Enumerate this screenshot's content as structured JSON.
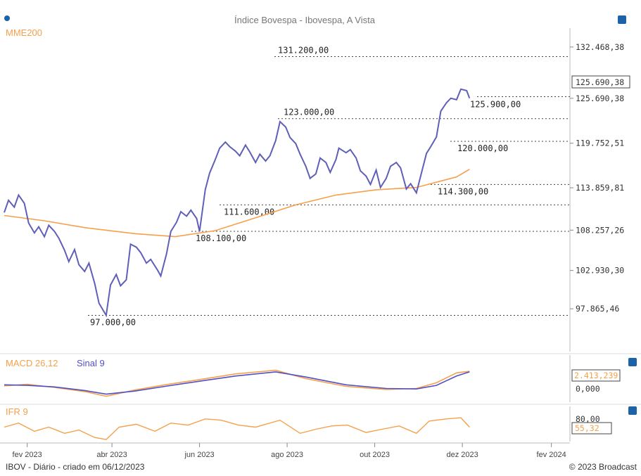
{
  "chart_data": {
    "type": "line",
    "title": "Índice Bovespa - Ibovespa, A Vista",
    "indicator_label": "MME200",
    "footer_left": "IBOV - Diário - criado em 06/12/2023",
    "footer_right": "© 2023 Broadcast",
    "y_ticks": [
      "132.468,38",
      "125.690,38",
      "119.752,51",
      "113.859,81",
      "108.257,26",
      "102.930,30",
      "97.865,46"
    ],
    "ylim": [
      95000,
      134500
    ],
    "x_ticks": [
      {
        "label": "fev 2023",
        "date": "2023-02-01"
      },
      {
        "label": "abr 2023",
        "date": "2023-04-01"
      },
      {
        "label": "jun 2023",
        "date": "2023-06-01"
      },
      {
        "label": "ago 2023",
        "date": "2023-08-01"
      },
      {
        "label": "out 2023",
        "date": "2023-10-01"
      },
      {
        "label": "dez 2023",
        "date": "2023-12-01"
      },
      {
        "label": "fev 2024",
        "date": "2024-02-01"
      }
    ],
    "xlim": [
      "2023-01-16",
      "2024-02-10"
    ],
    "price_series": [
      {
        "date": "2023-01-16",
        "value": 110600
      },
      {
        "date": "2023-01-19",
        "value": 112200
      },
      {
        "date": "2023-01-23",
        "value": 111300
      },
      {
        "date": "2023-01-26",
        "value": 112900
      },
      {
        "date": "2023-01-30",
        "value": 111800
      },
      {
        "date": "2023-02-02",
        "value": 109200
      },
      {
        "date": "2023-02-06",
        "value": 107900
      },
      {
        "date": "2023-02-09",
        "value": 108700
      },
      {
        "date": "2023-02-13",
        "value": 107400
      },
      {
        "date": "2023-02-16",
        "value": 108900
      },
      {
        "date": "2023-02-20",
        "value": 108100
      },
      {
        "date": "2023-02-23",
        "value": 107200
      },
      {
        "date": "2023-02-27",
        "value": 105600
      },
      {
        "date": "2023-03-02",
        "value": 104100
      },
      {
        "date": "2023-03-06",
        "value": 105700
      },
      {
        "date": "2023-03-09",
        "value": 103700
      },
      {
        "date": "2023-03-13",
        "value": 102800
      },
      {
        "date": "2023-03-16",
        "value": 103900
      },
      {
        "date": "2023-03-20",
        "value": 101200
      },
      {
        "date": "2023-03-23",
        "value": 98600
      },
      {
        "date": "2023-03-28",
        "value": 97000
      },
      {
        "date": "2023-03-31",
        "value": 101000
      },
      {
        "date": "2023-04-04",
        "value": 102400
      },
      {
        "date": "2023-04-07",
        "value": 100900
      },
      {
        "date": "2023-04-11",
        "value": 101700
      },
      {
        "date": "2023-04-14",
        "value": 106400
      },
      {
        "date": "2023-04-18",
        "value": 106000
      },
      {
        "date": "2023-04-21",
        "value": 105300
      },
      {
        "date": "2023-04-25",
        "value": 103900
      },
      {
        "date": "2023-04-28",
        "value": 104400
      },
      {
        "date": "2023-05-03",
        "value": 102900
      },
      {
        "date": "2023-05-05",
        "value": 102200
      },
      {
        "date": "2023-05-09",
        "value": 105100
      },
      {
        "date": "2023-05-12",
        "value": 108100
      },
      {
        "date": "2023-05-16",
        "value": 109300
      },
      {
        "date": "2023-05-19",
        "value": 110700
      },
      {
        "date": "2023-05-23",
        "value": 110100
      },
      {
        "date": "2023-05-26",
        "value": 110900
      },
      {
        "date": "2023-05-30",
        "value": 109800
      },
      {
        "date": "2023-06-01",
        "value": 108100
      },
      {
        "date": "2023-06-05",
        "value": 113600
      },
      {
        "date": "2023-06-08",
        "value": 115800
      },
      {
        "date": "2023-06-12",
        "value": 117600
      },
      {
        "date": "2023-06-15",
        "value": 119100
      },
      {
        "date": "2023-06-19",
        "value": 119900
      },
      {
        "date": "2023-06-22",
        "value": 119300
      },
      {
        "date": "2023-06-26",
        "value": 118700
      },
      {
        "date": "2023-06-29",
        "value": 118100
      },
      {
        "date": "2023-07-03",
        "value": 119500
      },
      {
        "date": "2023-07-06",
        "value": 118600
      },
      {
        "date": "2023-07-10",
        "value": 117200
      },
      {
        "date": "2023-07-13",
        "value": 118300
      },
      {
        "date": "2023-07-17",
        "value": 117400
      },
      {
        "date": "2023-07-20",
        "value": 118100
      },
      {
        "date": "2023-07-24",
        "value": 120100
      },
      {
        "date": "2023-07-27",
        "value": 122600
      },
      {
        "date": "2023-07-31",
        "value": 121900
      },
      {
        "date": "2023-08-03",
        "value": 120500
      },
      {
        "date": "2023-08-07",
        "value": 119700
      },
      {
        "date": "2023-08-10",
        "value": 118300
      },
      {
        "date": "2023-08-14",
        "value": 116700
      },
      {
        "date": "2023-08-17",
        "value": 115100
      },
      {
        "date": "2023-08-21",
        "value": 115700
      },
      {
        "date": "2023-08-24",
        "value": 117800
      },
      {
        "date": "2023-08-28",
        "value": 117200
      },
      {
        "date": "2023-08-31",
        "value": 115900
      },
      {
        "date": "2023-09-04",
        "value": 117600
      },
      {
        "date": "2023-09-06",
        "value": 119100
      },
      {
        "date": "2023-09-11",
        "value": 118500
      },
      {
        "date": "2023-09-14",
        "value": 118900
      },
      {
        "date": "2023-09-18",
        "value": 117800
      },
      {
        "date": "2023-09-21",
        "value": 116100
      },
      {
        "date": "2023-09-25",
        "value": 115400
      },
      {
        "date": "2023-09-28",
        "value": 114300
      },
      {
        "date": "2023-10-02",
        "value": 116200
      },
      {
        "date": "2023-10-05",
        "value": 113900
      },
      {
        "date": "2023-10-09",
        "value": 115100
      },
      {
        "date": "2023-10-12",
        "value": 116700
      },
      {
        "date": "2023-10-16",
        "value": 117200
      },
      {
        "date": "2023-10-19",
        "value": 116500
      },
      {
        "date": "2023-10-23",
        "value": 113700
      },
      {
        "date": "2023-10-26",
        "value": 114400
      },
      {
        "date": "2023-10-30",
        "value": 113200
      },
      {
        "date": "2023-11-01",
        "value": 114700
      },
      {
        "date": "2023-11-06",
        "value": 118400
      },
      {
        "date": "2023-11-09",
        "value": 119300
      },
      {
        "date": "2023-11-13",
        "value": 120600
      },
      {
        "date": "2023-11-16",
        "value": 124000
      },
      {
        "date": "2023-11-20",
        "value": 125100
      },
      {
        "date": "2023-11-23",
        "value": 125700
      },
      {
        "date": "2023-11-27",
        "value": 125500
      },
      {
        "date": "2023-11-30",
        "value": 126900
      },
      {
        "date": "2023-12-04",
        "value": 126700
      },
      {
        "date": "2023-12-06",
        "value": 125700
      }
    ],
    "mme200_series": [
      {
        "date": "2023-01-16",
        "value": 110200
      },
      {
        "date": "2023-02-13",
        "value": 109500
      },
      {
        "date": "2023-03-13",
        "value": 108600
      },
      {
        "date": "2023-04-17",
        "value": 107800
      },
      {
        "date": "2023-05-15",
        "value": 107400
      },
      {
        "date": "2023-06-12",
        "value": 108200
      },
      {
        "date": "2023-07-10",
        "value": 109900
      },
      {
        "date": "2023-08-07",
        "value": 111600
      },
      {
        "date": "2023-09-04",
        "value": 112900
      },
      {
        "date": "2023-10-02",
        "value": 113600
      },
      {
        "date": "2023-10-30",
        "value": 113900
      },
      {
        "date": "2023-11-27",
        "value": 115300
      },
      {
        "date": "2023-12-06",
        "value": 116300
      }
    ],
    "levels": [
      {
        "label": "131.200,00",
        "value": 131200
      },
      {
        "label": "125.900,00",
        "value": 125900
      },
      {
        "label": "123.000,00",
        "value": 123000
      },
      {
        "label": "120.000,00",
        "value": 120000
      },
      {
        "label": "114.300,00",
        "value": 114300
      },
      {
        "label": "111.600,00",
        "value": 111600
      },
      {
        "label": "108.100,00",
        "value": 108100
      },
      {
        "label": "97.000,00",
        "value": 97000
      }
    ],
    "current_value": "125.690,38",
    "macd": {
      "label": "MACD 26,12",
      "signal_label": "Sinal 9",
      "y_ticks": [
        "0,000"
      ],
      "current_value": "2.413,239",
      "macd_series": [
        {
          "date": "2023-01-16",
          "value": -400
        },
        {
          "date": "2023-02-01",
          "value": -100
        },
        {
          "date": "2023-02-20",
          "value": -700
        },
        {
          "date": "2023-03-13",
          "value": -1500
        },
        {
          "date": "2023-03-28",
          "value": -2400
        },
        {
          "date": "2023-04-17",
          "value": -1200
        },
        {
          "date": "2023-05-08",
          "value": -200
        },
        {
          "date": "2023-06-01",
          "value": 800
        },
        {
          "date": "2023-06-26",
          "value": 1900
        },
        {
          "date": "2023-07-24",
          "value": 2600
        },
        {
          "date": "2023-08-14",
          "value": 1000
        },
        {
          "date": "2023-09-11",
          "value": -500
        },
        {
          "date": "2023-10-09",
          "value": -1100
        },
        {
          "date": "2023-10-30",
          "value": -900
        },
        {
          "date": "2023-11-13",
          "value": 200
        },
        {
          "date": "2023-11-27",
          "value": 2100
        },
        {
          "date": "2023-12-06",
          "value": 2400
        }
      ],
      "signal_series": [
        {
          "date": "2023-01-16",
          "value": -200
        },
        {
          "date": "2023-02-01",
          "value": -300
        },
        {
          "date": "2023-02-20",
          "value": -600
        },
        {
          "date": "2023-03-13",
          "value": -1300
        },
        {
          "date": "2023-03-28",
          "value": -2000
        },
        {
          "date": "2023-04-17",
          "value": -1400
        },
        {
          "date": "2023-05-08",
          "value": -500
        },
        {
          "date": "2023-06-01",
          "value": 500
        },
        {
          "date": "2023-06-26",
          "value": 1500
        },
        {
          "date": "2023-07-24",
          "value": 2300
        },
        {
          "date": "2023-08-14",
          "value": 1300
        },
        {
          "date": "2023-09-11",
          "value": -200
        },
        {
          "date": "2023-10-09",
          "value": -900
        },
        {
          "date": "2023-10-30",
          "value": -1000
        },
        {
          "date": "2023-11-13",
          "value": -300
        },
        {
          "date": "2023-11-27",
          "value": 1500
        },
        {
          "date": "2023-12-06",
          "value": 2300
        }
      ],
      "ylim": [
        -3000,
        3500
      ]
    },
    "ifr": {
      "label": "IFR 9",
      "y_ticks": [
        "80,00"
      ],
      "current_value": "55,32",
      "ylim": [
        20,
        85
      ],
      "series": [
        {
          "date": "2023-01-16",
          "value": 55
        },
        {
          "date": "2023-01-26",
          "value": 65
        },
        {
          "date": "2023-02-06",
          "value": 45
        },
        {
          "date": "2023-02-16",
          "value": 55
        },
        {
          "date": "2023-02-27",
          "value": 40
        },
        {
          "date": "2023-03-09",
          "value": 48
        },
        {
          "date": "2023-03-20",
          "value": 30
        },
        {
          "date": "2023-03-28",
          "value": 25
        },
        {
          "date": "2023-04-06",
          "value": 55
        },
        {
          "date": "2023-04-18",
          "value": 62
        },
        {
          "date": "2023-05-01",
          "value": 45
        },
        {
          "date": "2023-05-12",
          "value": 65
        },
        {
          "date": "2023-05-24",
          "value": 60
        },
        {
          "date": "2023-06-05",
          "value": 75
        },
        {
          "date": "2023-06-16",
          "value": 72
        },
        {
          "date": "2023-06-28",
          "value": 60
        },
        {
          "date": "2023-07-10",
          "value": 55
        },
        {
          "date": "2023-07-27",
          "value": 72
        },
        {
          "date": "2023-08-10",
          "value": 40
        },
        {
          "date": "2023-08-21",
          "value": 50
        },
        {
          "date": "2023-09-01",
          "value": 58
        },
        {
          "date": "2023-09-12",
          "value": 60
        },
        {
          "date": "2023-09-25",
          "value": 42
        },
        {
          "date": "2023-10-06",
          "value": 50
        },
        {
          "date": "2023-10-18",
          "value": 58
        },
        {
          "date": "2023-10-30",
          "value": 40
        },
        {
          "date": "2023-11-08",
          "value": 70
        },
        {
          "date": "2023-11-20",
          "value": 75
        },
        {
          "date": "2023-11-30",
          "value": 78
        },
        {
          "date": "2023-12-06",
          "value": 55
        }
      ]
    }
  }
}
